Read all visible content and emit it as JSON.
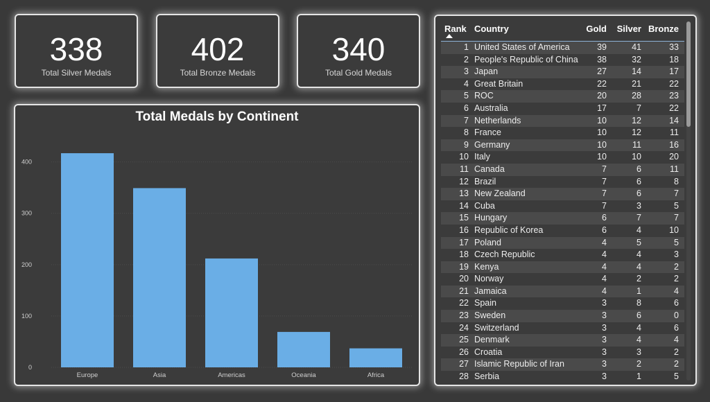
{
  "kpis": [
    {
      "value": "338",
      "label": "Total Silver Medals"
    },
    {
      "value": "402",
      "label": "Total Bronze Medals"
    },
    {
      "value": "340",
      "label": "Total Gold Medals"
    }
  ],
  "chart_data": {
    "type": "bar",
    "title": "Total Medals by Continent",
    "categories": [
      "Europe",
      "Asia",
      "Americas",
      "Oceania",
      "Africa"
    ],
    "values": [
      417,
      349,
      212,
      69,
      37
    ],
    "ylim": [
      0,
      440
    ],
    "yticks": [
      0,
      100,
      200,
      300,
      400
    ],
    "xlabel": "",
    "ylabel": "",
    "grid": true,
    "bar_color": "#6aaee6"
  },
  "table": {
    "columns": {
      "rank": "Rank",
      "country": "Country",
      "gold": "Gold",
      "silver": "Silver",
      "bronze": "Bronze"
    },
    "rows": [
      [
        "1",
        "United States of America",
        "39",
        "41",
        "33"
      ],
      [
        "2",
        "People's Republic of China",
        "38",
        "32",
        "18"
      ],
      [
        "3",
        "Japan",
        "27",
        "14",
        "17"
      ],
      [
        "4",
        "Great Britain",
        "22",
        "21",
        "22"
      ],
      [
        "5",
        "ROC",
        "20",
        "28",
        "23"
      ],
      [
        "6",
        "Australia",
        "17",
        "7",
        "22"
      ],
      [
        "7",
        "Netherlands",
        "10",
        "12",
        "14"
      ],
      [
        "8",
        "France",
        "10",
        "12",
        "11"
      ],
      [
        "9",
        "Germany",
        "10",
        "11",
        "16"
      ],
      [
        "10",
        "Italy",
        "10",
        "10",
        "20"
      ],
      [
        "11",
        "Canada",
        "7",
        "6",
        "11"
      ],
      [
        "12",
        "Brazil",
        "7",
        "6",
        "8"
      ],
      [
        "13",
        "New Zealand",
        "7",
        "6",
        "7"
      ],
      [
        "14",
        "Cuba",
        "7",
        "3",
        "5"
      ],
      [
        "15",
        "Hungary",
        "6",
        "7",
        "7"
      ],
      [
        "16",
        "Republic of Korea",
        "6",
        "4",
        "10"
      ],
      [
        "17",
        "Poland",
        "4",
        "5",
        "5"
      ],
      [
        "18",
        "Czech Republic",
        "4",
        "4",
        "3"
      ],
      [
        "19",
        "Kenya",
        "4",
        "4",
        "2"
      ],
      [
        "20",
        "Norway",
        "4",
        "2",
        "2"
      ],
      [
        "21",
        "Jamaica",
        "4",
        "1",
        "4"
      ],
      [
        "22",
        "Spain",
        "3",
        "8",
        "6"
      ],
      [
        "23",
        "Sweden",
        "3",
        "6",
        "0"
      ],
      [
        "24",
        "Switzerland",
        "3",
        "4",
        "6"
      ],
      [
        "25",
        "Denmark",
        "3",
        "4",
        "4"
      ],
      [
        "26",
        "Croatia",
        "3",
        "3",
        "2"
      ],
      [
        "27",
        "Islamic Republic of Iran",
        "3",
        "2",
        "2"
      ],
      [
        "28",
        "Serbia",
        "3",
        "1",
        "5"
      ]
    ]
  }
}
